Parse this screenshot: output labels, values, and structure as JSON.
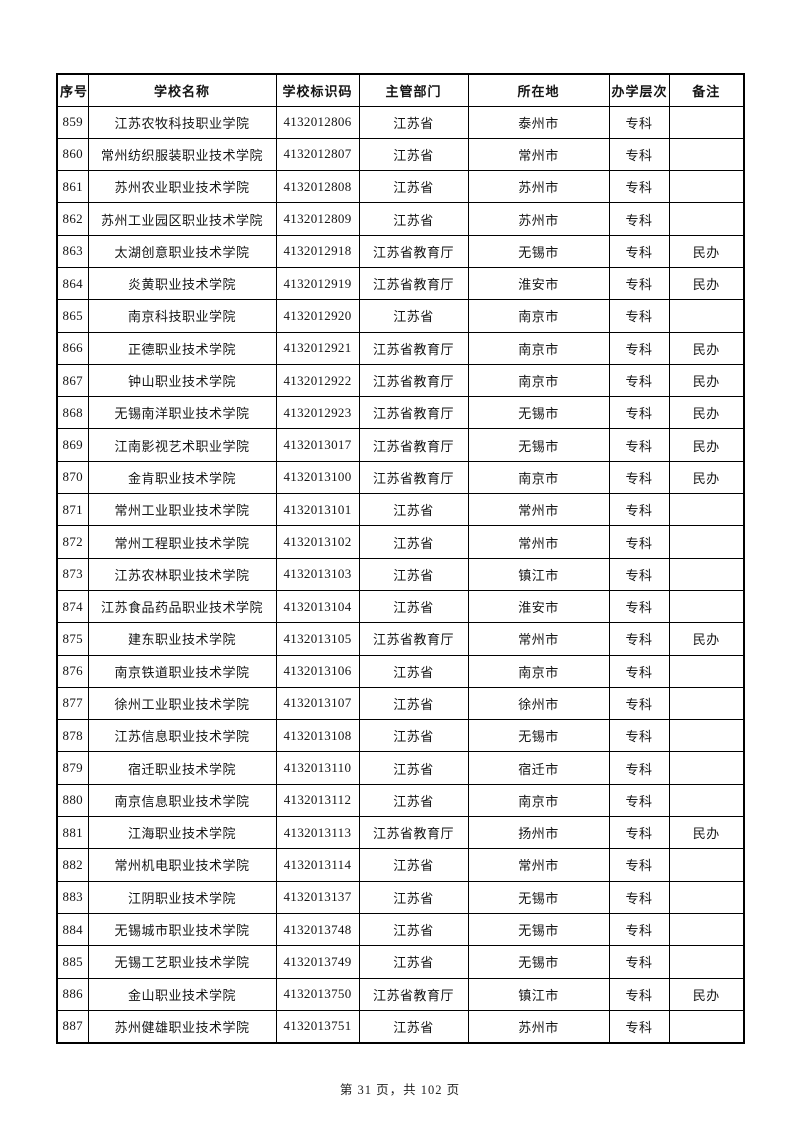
{
  "page": {
    "footer": "第 31 页，共 102 页"
  },
  "table": {
    "columns": [
      {
        "key": "seq",
        "label": "序号"
      },
      {
        "key": "name",
        "label": "学校名称"
      },
      {
        "key": "code",
        "label": "学校标识码"
      },
      {
        "key": "dept",
        "label": "主管部门"
      },
      {
        "key": "city",
        "label": "所在地"
      },
      {
        "key": "level",
        "label": "办学层次"
      },
      {
        "key": "note",
        "label": "备注"
      }
    ],
    "rows": [
      [
        "859",
        "江苏农牧科技职业学院",
        "4132012806",
        "江苏省",
        "泰州市",
        "专科",
        ""
      ],
      [
        "860",
        "常州纺织服装职业技术学院",
        "4132012807",
        "江苏省",
        "常州市",
        "专科",
        ""
      ],
      [
        "861",
        "苏州农业职业技术学院",
        "4132012808",
        "江苏省",
        "苏州市",
        "专科",
        ""
      ],
      [
        "862",
        "苏州工业园区职业技术学院",
        "4132012809",
        "江苏省",
        "苏州市",
        "专科",
        ""
      ],
      [
        "863",
        "太湖创意职业技术学院",
        "4132012918",
        "江苏省教育厅",
        "无锡市",
        "专科",
        "民办"
      ],
      [
        "864",
        "炎黄职业技术学院",
        "4132012919",
        "江苏省教育厅",
        "淮安市",
        "专科",
        "民办"
      ],
      [
        "865",
        "南京科技职业学院",
        "4132012920",
        "江苏省",
        "南京市",
        "专科",
        ""
      ],
      [
        "866",
        "正德职业技术学院",
        "4132012921",
        "江苏省教育厅",
        "南京市",
        "专科",
        "民办"
      ],
      [
        "867",
        "钟山职业技术学院",
        "4132012922",
        "江苏省教育厅",
        "南京市",
        "专科",
        "民办"
      ],
      [
        "868",
        "无锡南洋职业技术学院",
        "4132012923",
        "江苏省教育厅",
        "无锡市",
        "专科",
        "民办"
      ],
      [
        "869",
        "江南影视艺术职业学院",
        "4132013017",
        "江苏省教育厅",
        "无锡市",
        "专科",
        "民办"
      ],
      [
        "870",
        "金肯职业技术学院",
        "4132013100",
        "江苏省教育厅",
        "南京市",
        "专科",
        "民办"
      ],
      [
        "871",
        "常州工业职业技术学院",
        "4132013101",
        "江苏省",
        "常州市",
        "专科",
        ""
      ],
      [
        "872",
        "常州工程职业技术学院",
        "4132013102",
        "江苏省",
        "常州市",
        "专科",
        ""
      ],
      [
        "873",
        "江苏农林职业技术学院",
        "4132013103",
        "江苏省",
        "镇江市",
        "专科",
        ""
      ],
      [
        "874",
        "江苏食品药品职业技术学院",
        "4132013104",
        "江苏省",
        "淮安市",
        "专科",
        ""
      ],
      [
        "875",
        "建东职业技术学院",
        "4132013105",
        "江苏省教育厅",
        "常州市",
        "专科",
        "民办"
      ],
      [
        "876",
        "南京铁道职业技术学院",
        "4132013106",
        "江苏省",
        "南京市",
        "专科",
        ""
      ],
      [
        "877",
        "徐州工业职业技术学院",
        "4132013107",
        "江苏省",
        "徐州市",
        "专科",
        ""
      ],
      [
        "878",
        "江苏信息职业技术学院",
        "4132013108",
        "江苏省",
        "无锡市",
        "专科",
        ""
      ],
      [
        "879",
        "宿迁职业技术学院",
        "4132013110",
        "江苏省",
        "宿迁市",
        "专科",
        ""
      ],
      [
        "880",
        "南京信息职业技术学院",
        "4132013112",
        "江苏省",
        "南京市",
        "专科",
        ""
      ],
      [
        "881",
        "江海职业技术学院",
        "4132013113",
        "江苏省教育厅",
        "扬州市",
        "专科",
        "民办"
      ],
      [
        "882",
        "常州机电职业技术学院",
        "4132013114",
        "江苏省",
        "常州市",
        "专科",
        ""
      ],
      [
        "883",
        "江阴职业技术学院",
        "4132013137",
        "江苏省",
        "无锡市",
        "专科",
        ""
      ],
      [
        "884",
        "无锡城市职业技术学院",
        "4132013748",
        "江苏省",
        "无锡市",
        "专科",
        ""
      ],
      [
        "885",
        "无锡工艺职业技术学院",
        "4132013749",
        "江苏省",
        "无锡市",
        "专科",
        ""
      ],
      [
        "886",
        "金山职业技术学院",
        "4132013750",
        "江苏省教育厅",
        "镇江市",
        "专科",
        "民办"
      ],
      [
        "887",
        "苏州健雄职业技术学院",
        "4132013751",
        "江苏省",
        "苏州市",
        "专科",
        ""
      ]
    ]
  }
}
